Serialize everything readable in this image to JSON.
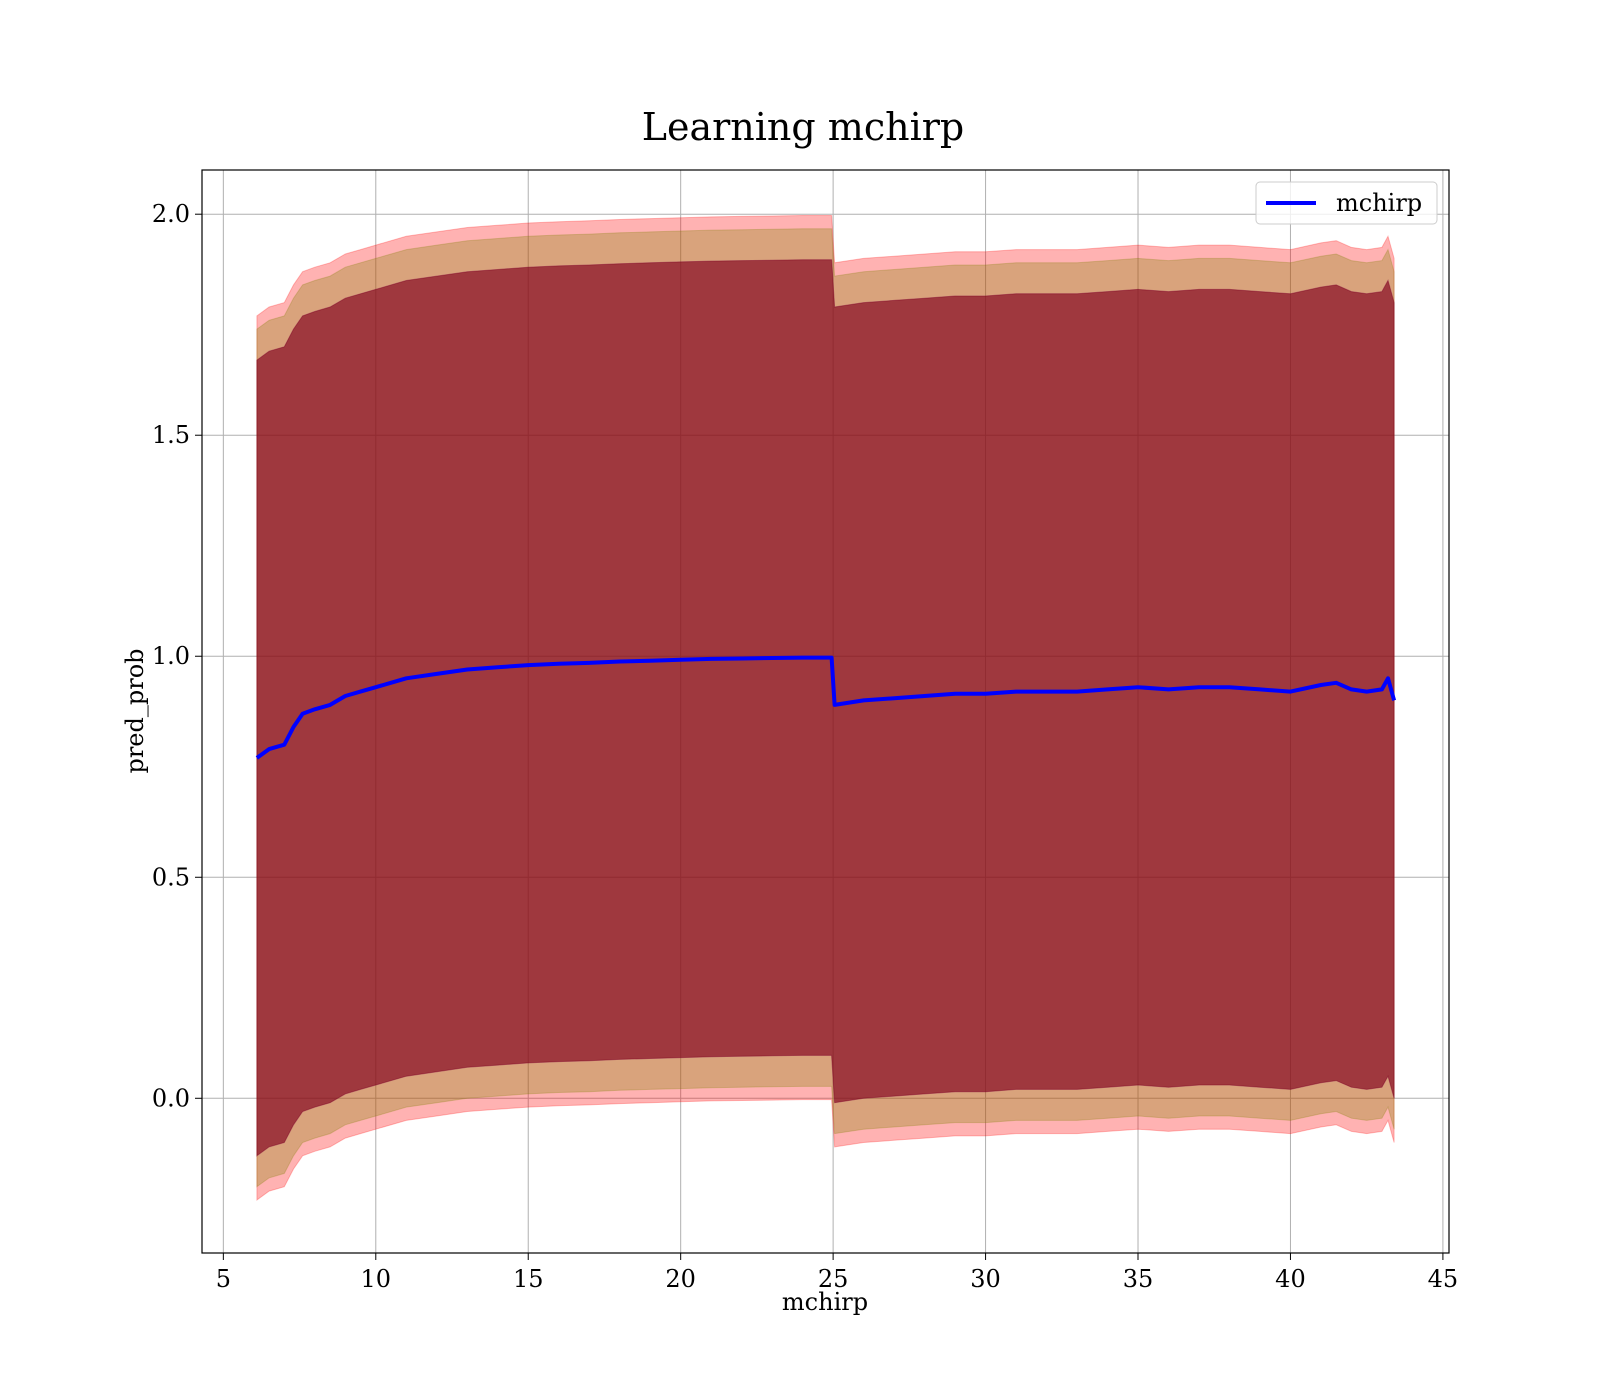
{
  "chart_data": {
    "type": "line",
    "title": "Learning mchirp",
    "xlabel": "mchirp",
    "ylabel": "pred_prob",
    "xlim": [
      4.3,
      45.2
    ],
    "ylim": [
      -0.35,
      2.1
    ],
    "xticks": [
      "5",
      "10",
      "15",
      "20",
      "25",
      "30",
      "35",
      "40",
      "45"
    ],
    "yticks": [
      "0.0",
      "0.5",
      "1.0",
      "1.5",
      "2.0"
    ],
    "grid": true,
    "legend_position": "upper right",
    "series": [
      {
        "name": "mchirp",
        "color": "#0000ff",
        "x": [
          6.1,
          6.5,
          7.0,
          7.3,
          7.6,
          8.0,
          8.5,
          9.0,
          9.5,
          10.0,
          11.0,
          12.0,
          13.0,
          14.0,
          15.0,
          16.0,
          17.0,
          18.0,
          19.0,
          20.0,
          21.0,
          22.0,
          23.0,
          24.0,
          24.95,
          25.05,
          26.0,
          27.0,
          28.0,
          29.0,
          30.0,
          31.0,
          32.0,
          33.0,
          34.0,
          35.0,
          36.0,
          37.0,
          38.0,
          39.0,
          40.0,
          41.0,
          41.5,
          42.0,
          42.5,
          43.0,
          43.2,
          43.4
        ],
        "values": [
          0.77,
          0.79,
          0.8,
          0.84,
          0.87,
          0.88,
          0.89,
          0.91,
          0.92,
          0.93,
          0.95,
          0.96,
          0.97,
          0.975,
          0.98,
          0.983,
          0.985,
          0.988,
          0.99,
          0.992,
          0.994,
          0.995,
          0.996,
          0.997,
          0.997,
          0.89,
          0.9,
          0.905,
          0.91,
          0.915,
          0.915,
          0.92,
          0.92,
          0.92,
          0.925,
          0.93,
          0.925,
          0.93,
          0.93,
          0.925,
          0.92,
          0.935,
          0.94,
          0.925,
          0.92,
          0.925,
          0.95,
          0.9
        ]
      }
    ],
    "bands": [
      {
        "name": "outer",
        "color": "#ff0000",
        "opacity": 0.3,
        "half_width": [
          1.0,
          1.0,
          1.0,
          1.0,
          1.0,
          1.0,
          1.0,
          1.0,
          1.0,
          1.0,
          1.0,
          1.0,
          1.0,
          1.0,
          1.0,
          1.0,
          1.0,
          1.0,
          1.0,
          1.0,
          1.0,
          1.0,
          1.0,
          1.0,
          1.0,
          1.0,
          1.0,
          1.0,
          1.0,
          1.0,
          1.0,
          1.0,
          1.0,
          1.0,
          1.0,
          1.0,
          1.0,
          1.0,
          1.0,
          1.0,
          1.0,
          1.0,
          1.0,
          1.0,
          1.0,
          1.0,
          1.0,
          1.0
        ]
      },
      {
        "name": "middle",
        "color": "#808000",
        "opacity": 0.3,
        "half_width": [
          0.97,
          0.97,
          0.97,
          0.97,
          0.97,
          0.97,
          0.97,
          0.97,
          0.97,
          0.97,
          0.97,
          0.97,
          0.97,
          0.97,
          0.97,
          0.97,
          0.97,
          0.97,
          0.97,
          0.97,
          0.97,
          0.97,
          0.97,
          0.97,
          0.97,
          0.97,
          0.97,
          0.97,
          0.97,
          0.97,
          0.97,
          0.97,
          0.97,
          0.97,
          0.97,
          0.97,
          0.97,
          0.97,
          0.97,
          0.97,
          0.97,
          0.97,
          0.97,
          0.97,
          0.97,
          0.97,
          0.97,
          0.97
        ]
      },
      {
        "name": "inner",
        "color": "#800080",
        "opacity": 0.3,
        "half_width": [
          0.9,
          0.9,
          0.9,
          0.9,
          0.9,
          0.9,
          0.9,
          0.9,
          0.9,
          0.9,
          0.9,
          0.9,
          0.9,
          0.9,
          0.9,
          0.9,
          0.9,
          0.9,
          0.9,
          0.9,
          0.9,
          0.9,
          0.9,
          0.9,
          0.9,
          0.9,
          0.9,
          0.9,
          0.9,
          0.9,
          0.9,
          0.9,
          0.9,
          0.9,
          0.9,
          0.9,
          0.9,
          0.9,
          0.9,
          0.9,
          0.9,
          0.9,
          0.9,
          0.9,
          0.9,
          0.9,
          0.9,
          0.9
        ]
      },
      {
        "name": "core",
        "color": "#800000",
        "opacity": 0.5,
        "half_width": [
          0.9,
          0.9,
          0.9,
          0.9,
          0.9,
          0.9,
          0.9,
          0.9,
          0.9,
          0.9,
          0.9,
          0.9,
          0.9,
          0.9,
          0.9,
          0.9,
          0.9,
          0.9,
          0.9,
          0.9,
          0.9,
          0.9,
          0.9,
          0.9,
          0.9,
          0.9,
          0.9,
          0.9,
          0.9,
          0.9,
          0.9,
          0.9,
          0.9,
          0.9,
          0.9,
          0.9,
          0.9,
          0.9,
          0.9,
          0.9,
          0.9,
          0.9,
          0.9,
          0.9,
          0.9,
          0.9,
          0.9,
          0.9
        ]
      }
    ]
  }
}
